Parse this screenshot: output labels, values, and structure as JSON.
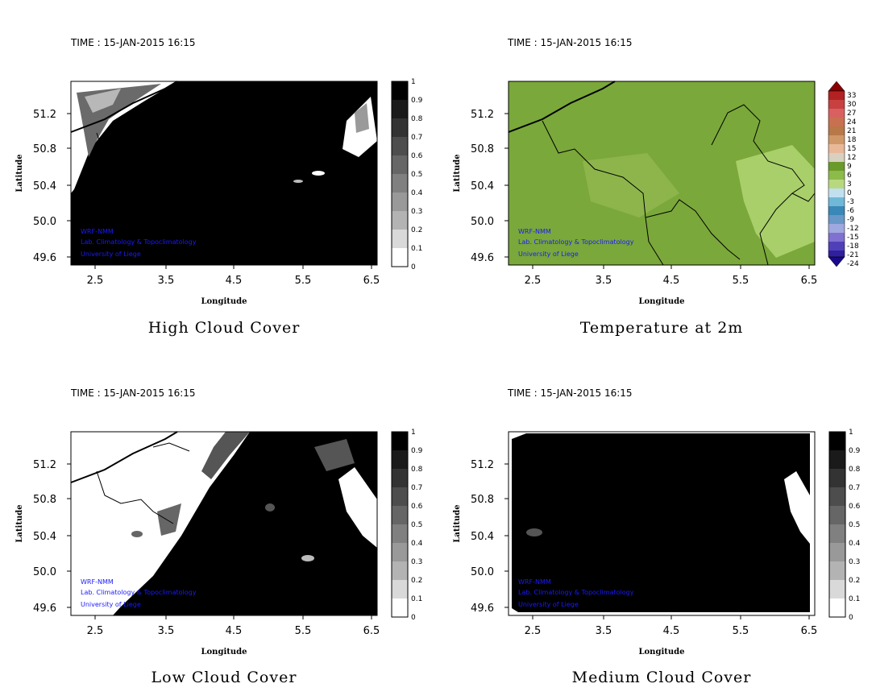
{
  "panels": [
    {
      "time": "TIME : 15-JAN-2015 16:15",
      "title": "High Cloud Cover",
      "x_label": "Longitude",
      "y_label": "Latitude",
      "x_ticks": [
        "2.5",
        "3.5",
        "4.5",
        "5.5",
        "6.5"
      ],
      "y_ticks": [
        "51.2",
        "50.8",
        "50.4",
        "50.0",
        "49.6"
      ],
      "colorbar_ticks": [
        "1",
        "0.9",
        "0.8",
        "0.7",
        "0.6",
        "0.5",
        "0.4",
        "0.3",
        "0.2",
        "0.1",
        "0"
      ],
      "credits": [
        "WRF-NMM",
        "Lab. Climatology & Topoclimatology",
        "University of Liege"
      ]
    },
    {
      "time": "TIME : 15-JAN-2015 16:15",
      "title": "Temperature at 2m",
      "x_label": "Longitude",
      "y_label": "Latitude",
      "x_ticks": [
        "2.5",
        "3.5",
        "4.5",
        "5.5",
        "6.5"
      ],
      "y_ticks": [
        "51.2",
        "50.8",
        "50.4",
        "50.0",
        "49.6"
      ],
      "colorbar_ticks": [
        "33",
        "30",
        "27",
        "24",
        "21",
        "18",
        "15",
        "12",
        "9",
        "6",
        "3",
        "0",
        "-3",
        "-6",
        "-9",
        "-12",
        "-15",
        "-18",
        "-21",
        "-24"
      ],
      "credits": [
        "WRF-NMM",
        "Lab. Climatology & Topoclimatology",
        "University of Liege"
      ]
    },
    {
      "time": "TIME : 15-JAN-2015 16:15",
      "title": "Low Cloud Cover",
      "x_label": "Longitude",
      "y_label": "Latitude",
      "x_ticks": [
        "2.5",
        "3.5",
        "4.5",
        "5.5",
        "6.5"
      ],
      "y_ticks": [
        "51.2",
        "50.8",
        "50.4",
        "50.0",
        "49.6"
      ],
      "colorbar_ticks": [
        "1",
        "0.9",
        "0.8",
        "0.7",
        "0.6",
        "0.5",
        "0.4",
        "0.3",
        "0.2",
        "0.1",
        "0"
      ],
      "credits": [
        "WRF-NMM",
        "Lab. Climatology & Topoclimatology",
        "University of Liege"
      ]
    },
    {
      "time": "TIME : 15-JAN-2015 16:15",
      "title": "Medium Cloud Cover",
      "x_label": "Longitude",
      "y_label": "Latitude",
      "x_ticks": [
        "2.5",
        "3.5",
        "4.5",
        "5.5",
        "6.5"
      ],
      "y_ticks": [
        "51.2",
        "50.8",
        "50.4",
        "50.0",
        "49.6"
      ],
      "colorbar_ticks": [
        "1",
        "0.9",
        "0.8",
        "0.7",
        "0.6",
        "0.5",
        "0.4",
        "0.3",
        "0.2",
        "0.1",
        "0"
      ],
      "credits": [
        "WRF-NMM",
        "Lab. Climatology & Topoclimatology",
        "University of Liege"
      ]
    }
  ],
  "colors": {
    "cloud_dark": "#000000",
    "cloud_light": "#ffffff",
    "temperature_field": "#7aa83a",
    "temperature_field_light": "#a9cf6a",
    "border_line": "#000000",
    "credit_text": "#1a1aff"
  }
}
